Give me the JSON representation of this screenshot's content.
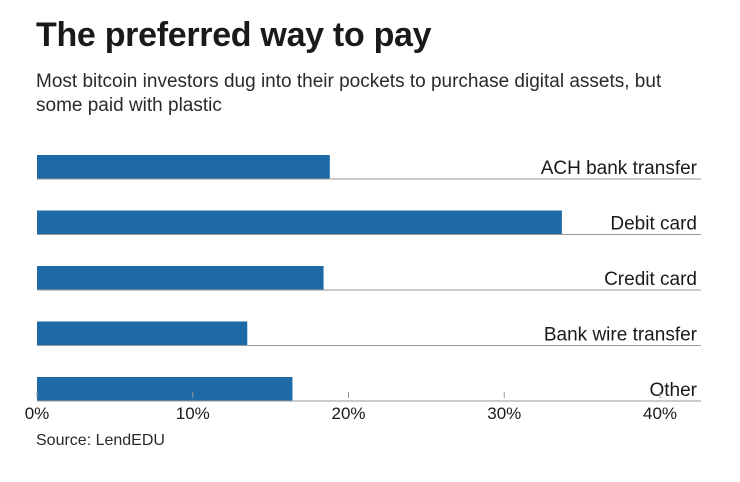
{
  "title": "The preferred way to pay",
  "subtitle": "Most bitcoin investors dug into their pockets to purchase digital assets, but some paid with plastic",
  "source": "Source: LendEDU",
  "colors": {
    "bar": "#1d6aa6",
    "rule": "#999999",
    "text": "#1a1a1a"
  },
  "chart_data": {
    "type": "bar",
    "orientation": "horizontal",
    "title": "The preferred way to pay",
    "subtitle": "Most bitcoin investors dug into their pockets to purchase digital assets, but some paid with plastic",
    "categories": [
      "ACH bank transfer",
      "Debit card",
      "Credit card",
      "Bank wire transfer",
      "Other"
    ],
    "values": [
      18.8,
      33.7,
      18.4,
      13.5,
      16.4
    ],
    "unit": "%",
    "xlim": [
      0,
      40
    ],
    "xticks": [
      "0%",
      "10%",
      "20%",
      "30%",
      "40%"
    ],
    "xlabel": "",
    "ylabel": "",
    "grid": false,
    "legend": "none"
  }
}
